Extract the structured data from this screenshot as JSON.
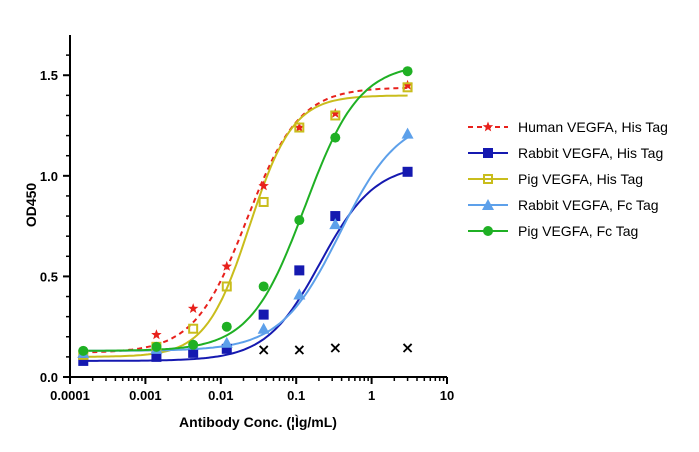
{
  "chart_data": {
    "type": "line",
    "xscale": "log",
    "xlabel": "Antibody Conc. (¦Ìg/mL)",
    "ylabel": "OD450",
    "xlim": [
      0.0001,
      10
    ],
    "ylim": [
      0,
      1.7
    ],
    "xticks": [
      "0.0001",
      "0.001",
      "0.01",
      "0.1",
      "1",
      "10"
    ],
    "yticks": [
      "0.0",
      "0.5",
      "1.0",
      "1.5"
    ],
    "grid": false,
    "legend_position": "right",
    "series": [
      {
        "name": "Human VEGFA, His Tag",
        "color": "#e8211c",
        "marker": "star",
        "line_style": "dashed",
        "x": [
          0.00015,
          0.0014,
          0.0043,
          0.012,
          0.037,
          0.11,
          0.33,
          3.0
        ],
        "y": [
          0.12,
          0.21,
          0.34,
          0.55,
          0.95,
          1.24,
          1.31,
          1.45
        ],
        "fit": {
          "bottom": 0.12,
          "top": 1.44,
          "ec50": 0.022,
          "hill": 1.25
        }
      },
      {
        "name": "Rabbit VEGFA, His Tag",
        "color": "#1519b0",
        "marker": "square",
        "line_style": "solid",
        "x": [
          0.00015,
          0.0014,
          0.0043,
          0.012,
          0.037,
          0.11,
          0.33,
          3.0
        ],
        "y": [
          0.08,
          0.1,
          0.12,
          0.14,
          0.31,
          0.53,
          0.8,
          1.02
        ],
        "fit": {
          "bottom": 0.08,
          "top": 1.06,
          "ec50": 0.21,
          "hill": 1.2
        }
      },
      {
        "name": "Pig VEGFA, His Tag",
        "color": "#c9bd1c",
        "marker": "open-square",
        "line_style": "solid",
        "x": [
          0.00015,
          0.0014,
          0.0043,
          0.012,
          0.037,
          0.11,
          0.33,
          3.0
        ],
        "y": [
          0.11,
          0.15,
          0.24,
          0.45,
          0.87,
          1.24,
          1.3,
          1.44
        ],
        "fit": {
          "bottom": 0.1,
          "top": 1.4,
          "ec50": 0.024,
          "hill": 1.5
        }
      },
      {
        "name": "Rabbit VEGFA, Fc Tag",
        "color": "#5da0ea",
        "marker": "triangle",
        "line_style": "solid",
        "x": [
          0.00015,
          0.0014,
          0.0043,
          0.012,
          0.037,
          0.11,
          0.33,
          3.0
        ],
        "y": [
          0.12,
          0.14,
          0.16,
          0.17,
          0.24,
          0.41,
          0.76,
          1.21
        ],
        "fit": {
          "bottom": 0.13,
          "top": 1.3,
          "ec50": 0.38,
          "hill": 1.1
        }
      },
      {
        "name": "Pig VEGFA, Fc Tag",
        "color": "#1fb024",
        "marker": "circle",
        "line_style": "solid",
        "x": [
          0.00015,
          0.0014,
          0.0043,
          0.012,
          0.037,
          0.11,
          0.33,
          3.0
        ],
        "y": [
          0.13,
          0.15,
          0.16,
          0.25,
          0.45,
          0.78,
          1.19,
          1.52
        ],
        "fit": {
          "bottom": 0.13,
          "top": 1.56,
          "ec50": 0.13,
          "hill": 1.2
        }
      }
    ],
    "annotations": [
      {
        "label": "×",
        "x": 0.037,
        "y": 0.14
      },
      {
        "label": "×",
        "x": 0.11,
        "y": 0.14
      },
      {
        "label": "×",
        "x": 0.33,
        "y": 0.15
      },
      {
        "label": "×",
        "x": 3.0,
        "y": 0.15
      }
    ]
  }
}
